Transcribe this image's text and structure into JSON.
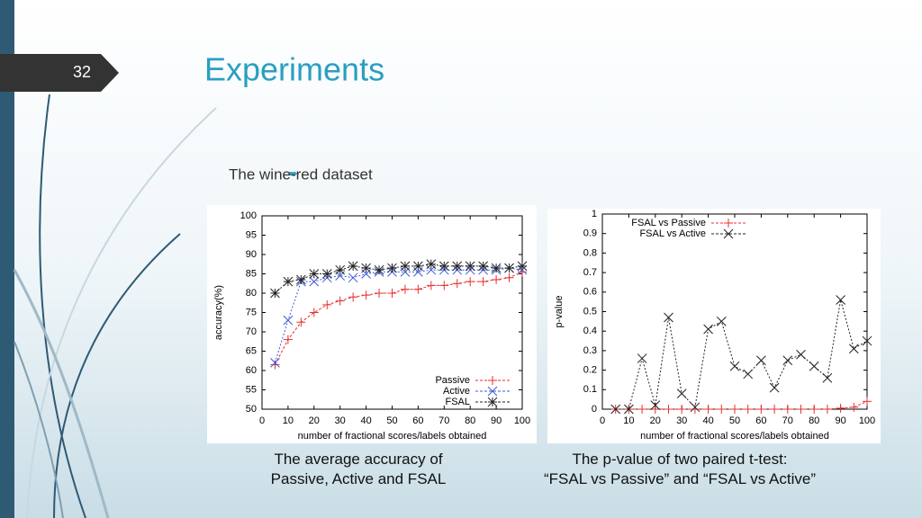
{
  "slide_number": "32",
  "title": "Experiments",
  "bullet": "The wine-red dataset",
  "captions": [
    [
      "The average accuracy of",
      "Passive, Active and FSAL"
    ],
    [
      "The p-value of two paired t-test:",
      "“FSAL vs Passive” and “FSAL vs Active”"
    ]
  ],
  "chart_data": [
    {
      "type": "line",
      "x_label": "number of fractional scores/labels obtained",
      "y_label": "accuracy(%)",
      "x": [
        5,
        10,
        15,
        20,
        25,
        30,
        35,
        40,
        45,
        50,
        55,
        60,
        65,
        70,
        75,
        80,
        85,
        90,
        95,
        100
      ],
      "series": [
        {
          "name": "Passive",
          "color": "#e8312f",
          "marker": "plus",
          "values": [
            61.5,
            68,
            72.5,
            75,
            77,
            78,
            79,
            79.5,
            80,
            80,
            81,
            81,
            82,
            82,
            82.5,
            83,
            83,
            83.5,
            84,
            85.5
          ]
        },
        {
          "name": "Active",
          "color": "#3d5bd8",
          "marker": "cross",
          "values": [
            62,
            73,
            83,
            83,
            84,
            84.5,
            84,
            85,
            85.5,
            85.5,
            85.5,
            85.5,
            86,
            86,
            86,
            86,
            86,
            86,
            86.5,
            86
          ]
        },
        {
          "name": "FSAL",
          "color": "#222222",
          "marker": "star",
          "values": [
            80,
            83,
            83.5,
            85,
            85,
            86,
            87,
            86.5,
            86,
            86.5,
            87,
            87,
            87.5,
            87,
            87,
            87,
            87,
            86.5,
            86.5,
            87
          ]
        }
      ],
      "xlim": [
        0,
        100
      ],
      "xticks": [
        0,
        10,
        20,
        30,
        40,
        50,
        60,
        70,
        80,
        90,
        100
      ],
      "ylim": [
        50,
        100
      ],
      "yticks": [
        50,
        55,
        60,
        65,
        70,
        75,
        80,
        85,
        90,
        95,
        100
      ],
      "legend": "lower right"
    },
    {
      "type": "line",
      "x_label": "number of fractional scores/labels obtained",
      "y_label": "p-value",
      "x": [
        5,
        10,
        15,
        20,
        25,
        30,
        35,
        40,
        45,
        50,
        55,
        60,
        65,
        70,
        75,
        80,
        85,
        90,
        95,
        100
      ],
      "series": [
        {
          "name": "FSAL vs Passive",
          "color": "#e8312f",
          "marker": "plus",
          "values": [
            0,
            0,
            0,
            0,
            0,
            0,
            0,
            0,
            0,
            0,
            0,
            0,
            0,
            0,
            0,
            0,
            0,
            0.005,
            0.01,
            0.04
          ]
        },
        {
          "name": "FSAL vs Active",
          "color": "#222222",
          "marker": "cross",
          "values": [
            0,
            0,
            0.26,
            0.02,
            0.47,
            0.08,
            0.01,
            0.41,
            0.45,
            0.22,
            0.18,
            0.25,
            0.11,
            0.25,
            0.28,
            0.22,
            0.16,
            0.56,
            0.31,
            0.35
          ]
        }
      ],
      "xlim": [
        0,
        100
      ],
      "xticks": [
        0,
        10,
        20,
        30,
        40,
        50,
        60,
        70,
        80,
        90,
        100
      ],
      "ylim": [
        0,
        1
      ],
      "yticks": [
        0,
        0.1,
        0.2,
        0.3,
        0.4,
        0.5,
        0.6,
        0.7,
        0.8,
        0.9,
        1
      ],
      "legend": "upper left"
    }
  ]
}
